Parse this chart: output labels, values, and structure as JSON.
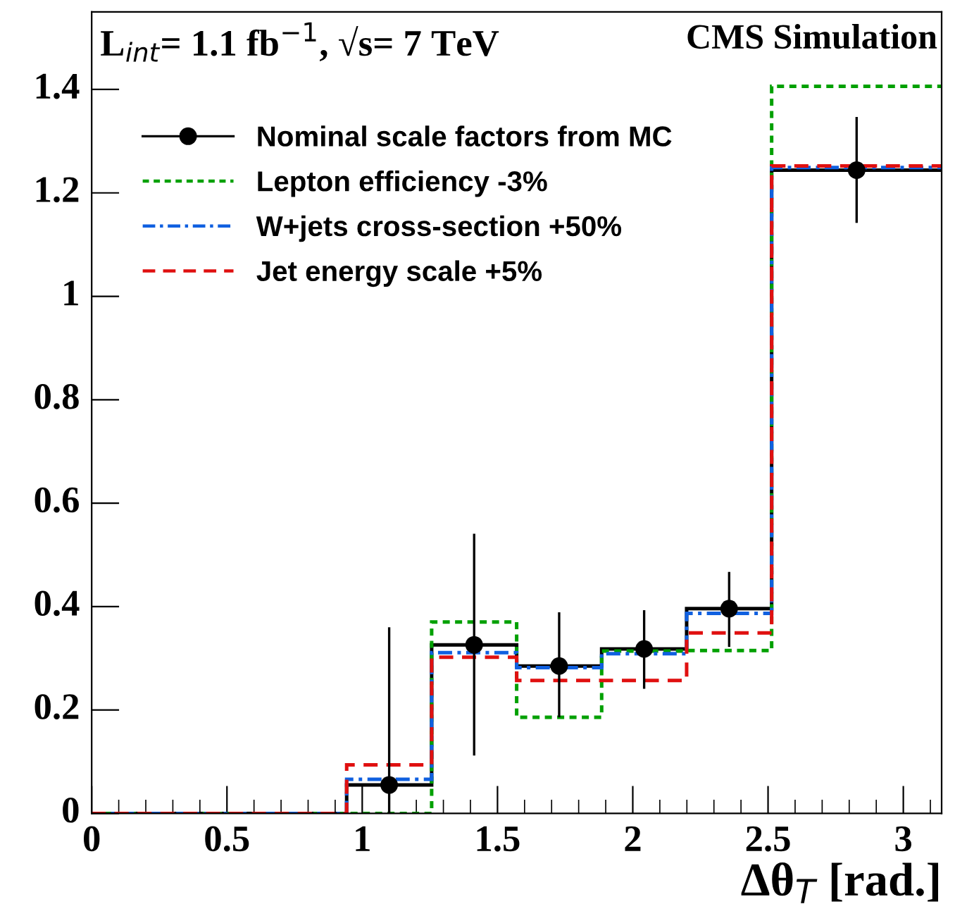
{
  "chart_data": {
    "type": "histogram",
    "xlabel": "Δθ$_{T}$ [rad.]",
    "bins": [
      0,
      0.3142,
      0.6283,
      0.9425,
      1.2566,
      1.5708,
      1.885,
      2.1991,
      2.5133,
      3.1416
    ],
    "series": [
      {
        "color": "#000000",
        "line_style": "solid",
        "values": [
          0,
          0,
          0,
          0.055,
          0.326,
          0.285,
          0.318,
          0.396,
          1.244
        ]
      },
      {
        "type": "scatter",
        "name": "Nominal scale factors from MC",
        "color": "#000000",
        "marker": "circle",
        "x": [
          1.0996,
          1.4137,
          1.7279,
          2.042,
          2.3562,
          2.8274
        ],
        "values": [
          0.055,
          0.326,
          0.285,
          0.318,
          0.396,
          1.244
        ],
        "errors": [
          [
            0,
            0.36
          ],
          [
            0.112,
            0.541
          ],
          [
            0.186,
            0.389
          ],
          [
            0.241,
            0.393
          ],
          [
            0.322,
            0.467
          ],
          [
            1.142,
            1.347
          ]
        ]
      },
      {
        "name": "Lepton efficiency -3%",
        "color": "#00a000",
        "line_style": "dotted",
        "values": [
          0,
          0,
          0,
          0,
          0.37,
          0.186,
          0.314,
          0.315,
          1.406
        ]
      },
      {
        "name": "W+jets cross-section +50%",
        "color": "#1060e0",
        "line_style": "dashdot",
        "values": [
          0,
          0,
          0,
          0.066,
          0.311,
          0.282,
          0.309,
          0.387,
          1.249
        ]
      },
      {
        "name": "Jet energy scale +5%",
        "color": "#e01010",
        "line_style": "dashed",
        "values": [
          0,
          0,
          0,
          0.094,
          0.302,
          0.257,
          0.257,
          0.349,
          1.252
        ]
      }
    ],
    "xlim": [
      0,
      3.1416
    ],
    "ylim": [
      0,
      1.55
    ],
    "xticks": [
      0,
      0.5,
      1,
      1.5,
      2,
      2.5,
      3
    ],
    "yticks": [
      0,
      0.2,
      0.4,
      0.6,
      0.8,
      1,
      1.2,
      1.4
    ],
    "legend": "top left",
    "grid": false,
    "annotations": [
      "L$_{int}$= 1.1 fb$^{−1}$, √s= 7 TeV",
      "CMS Simulation"
    ]
  }
}
